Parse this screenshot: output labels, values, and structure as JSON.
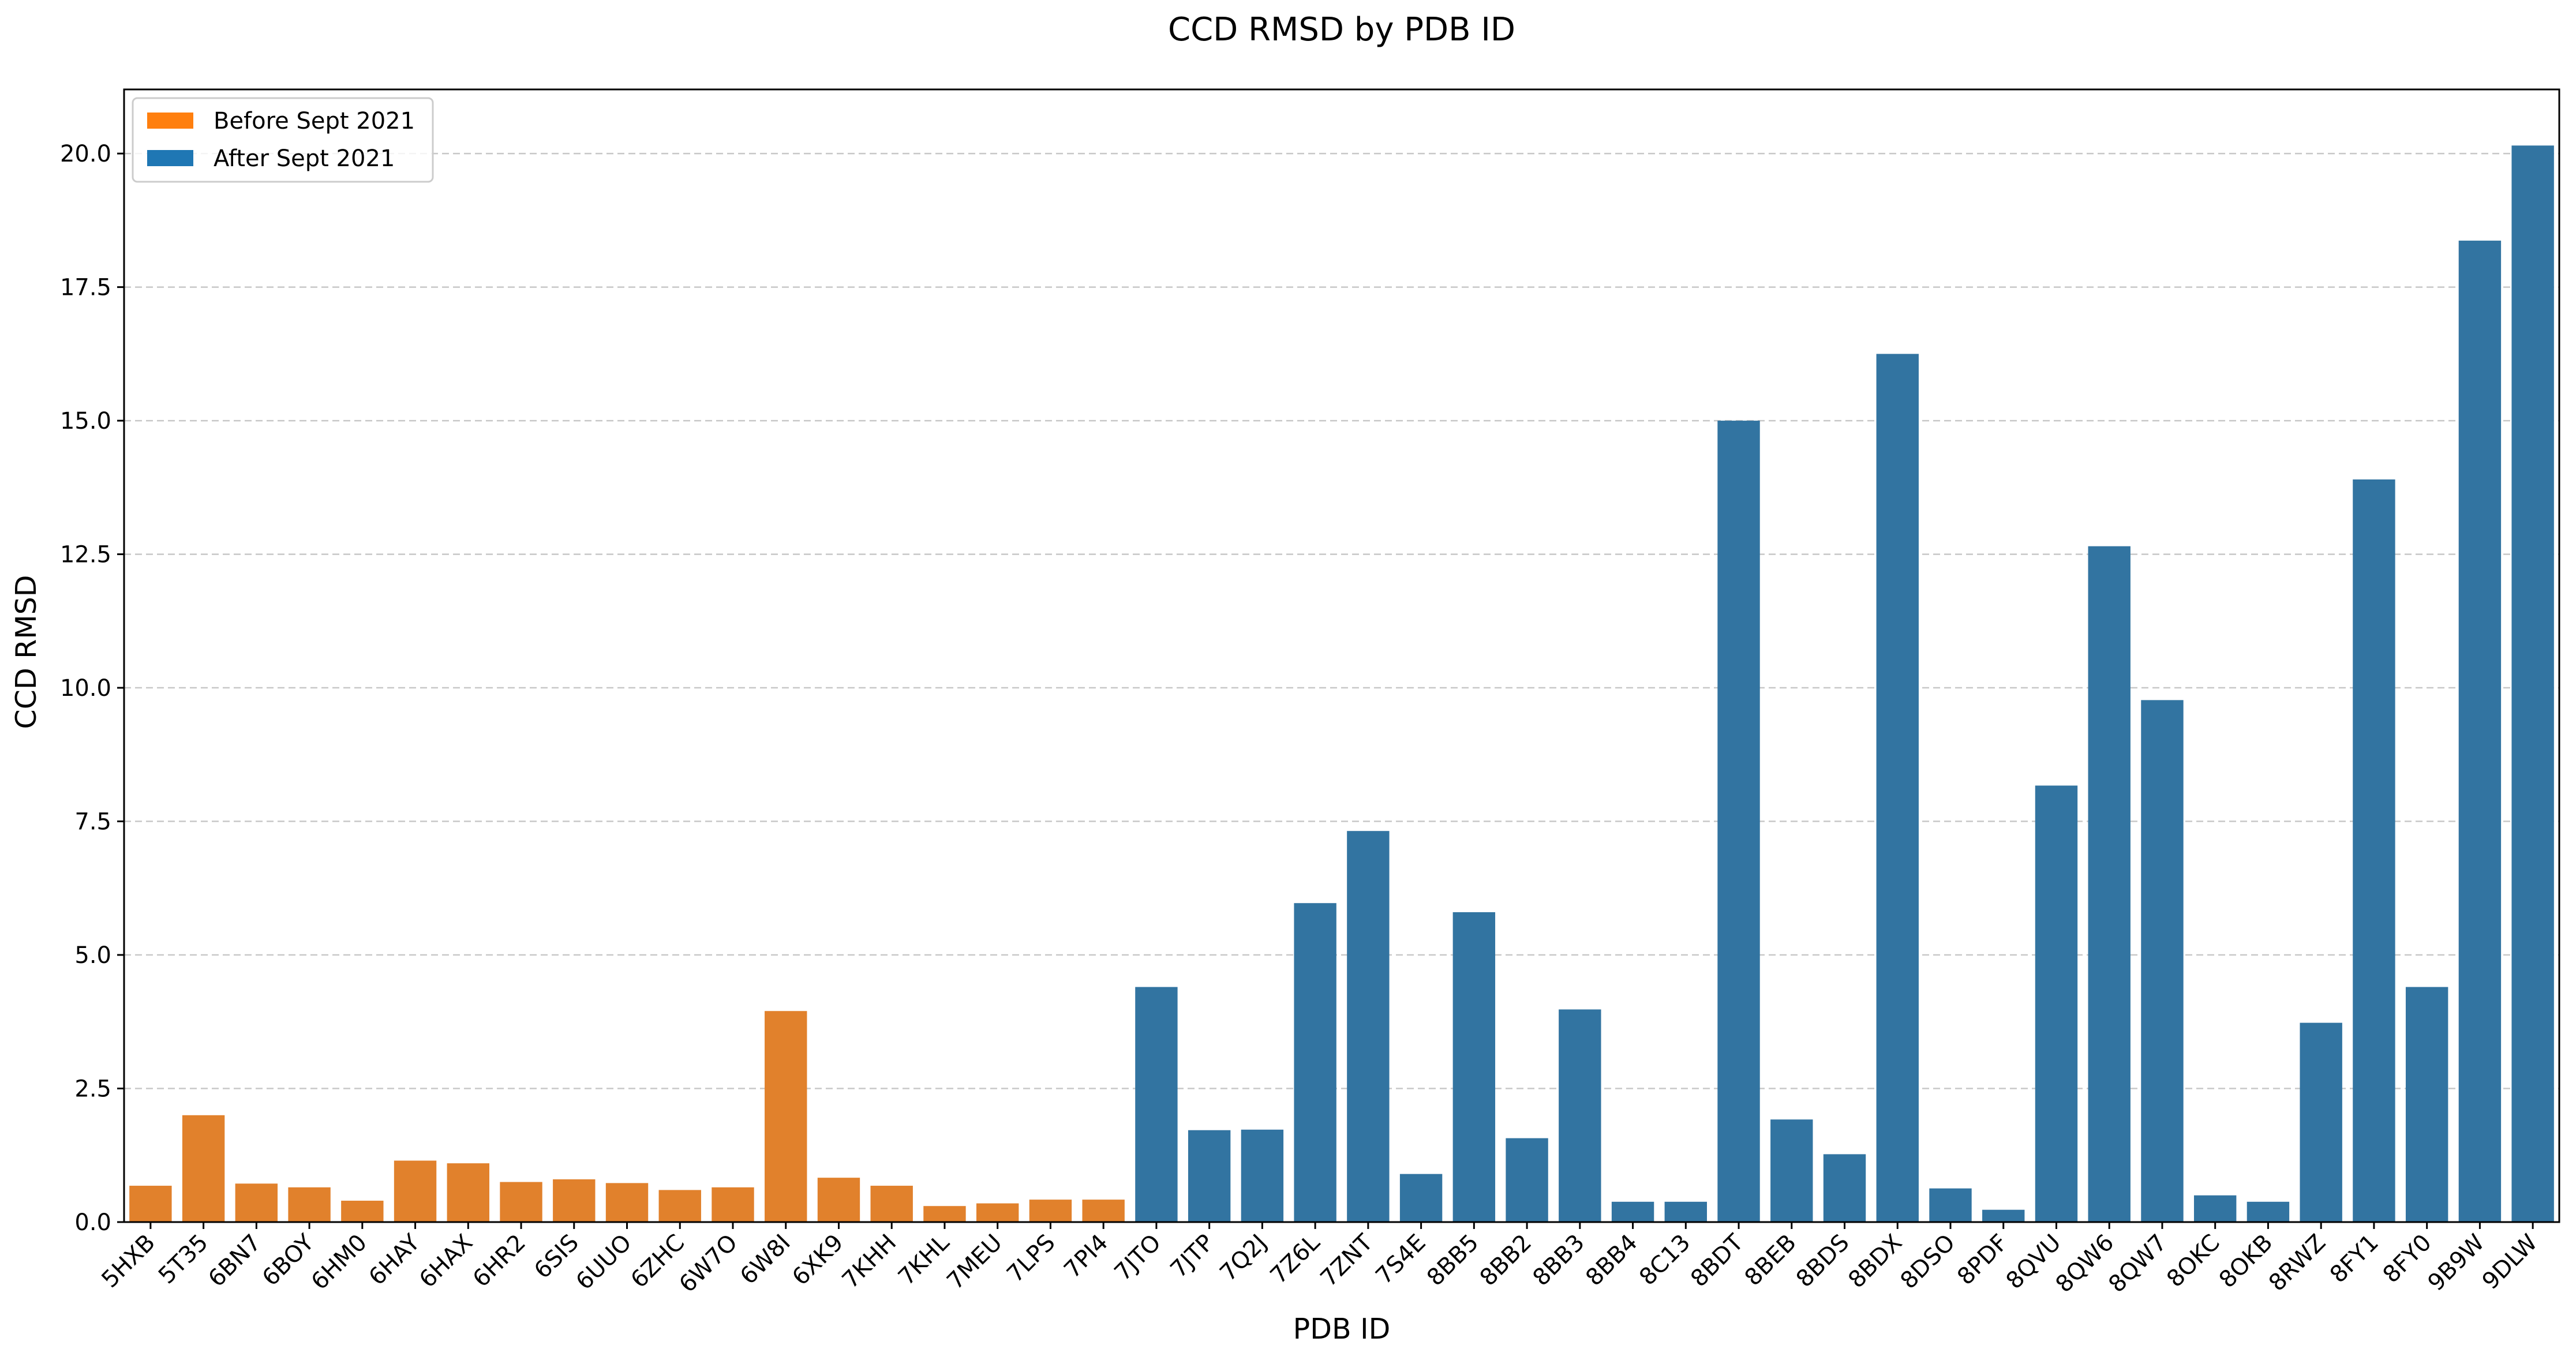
{
  "chart_data": {
    "type": "bar",
    "title": "CCD RMSD by PDB ID",
    "xlabel": "PDB ID",
    "ylabel": "CCD RMSD",
    "ylim": [
      0,
      21.2
    ],
    "yticks": [
      "0.0",
      "2.5",
      "5.0",
      "7.5",
      "10.0",
      "12.5",
      "15.0",
      "17.5",
      "20.0"
    ],
    "ytick_values": [
      0,
      2.5,
      5,
      7.5,
      10,
      12.5,
      15,
      17.5,
      20
    ],
    "grid": "horizontal dashed",
    "legend_position": "top-left",
    "series": [
      {
        "name": "Before Sept 2021",
        "color": "#ff7f0e",
        "bar_color": "#e1812c"
      },
      {
        "name": "After Sept 2021",
        "color": "#1f77b4",
        "bar_color": "#3274a1"
      }
    ],
    "categories": [
      "5HXB",
      "5T35",
      "6BN7",
      "6BOY",
      "6HM0",
      "6HAY",
      "6HAX",
      "6HR2",
      "6SIS",
      "6UUO",
      "6ZHC",
      "6W7O",
      "6W8I",
      "6XK9",
      "7KHH",
      "7KHL",
      "7MEU",
      "7LPS",
      "7PI4",
      "7JTO",
      "7JTP",
      "7Q2J",
      "7Z6L",
      "7ZNT",
      "7S4E",
      "8BB5",
      "8BB2",
      "8BB3",
      "8BB4",
      "8C13",
      "8BDT",
      "8BEB",
      "8BDS",
      "8BDX",
      "8DSO",
      "8PDF",
      "8QVU",
      "8QW6",
      "8QW7",
      "8OKC",
      "8OKB",
      "8RWZ",
      "8FY1",
      "8FY0",
      "9B9W",
      "9DLW"
    ],
    "values": [
      0.68,
      2.0,
      0.72,
      0.65,
      0.4,
      1.15,
      1.1,
      0.75,
      0.8,
      0.73,
      0.6,
      0.65,
      3.95,
      0.83,
      0.68,
      0.3,
      0.35,
      0.42,
      0.42,
      4.4,
      1.72,
      1.73,
      5.97,
      7.32,
      0.9,
      5.8,
      1.57,
      3.98,
      0.38,
      0.38,
      15.0,
      1.92,
      1.27,
      16.25,
      0.63,
      0.23,
      8.17,
      12.65,
      9.77,
      0.5,
      0.38,
      3.73,
      13.9,
      4.4,
      18.37,
      20.15
    ],
    "groups": [
      0,
      0,
      0,
      0,
      0,
      0,
      0,
      0,
      0,
      0,
      0,
      0,
      0,
      0,
      0,
      0,
      0,
      0,
      0,
      1,
      1,
      1,
      1,
      1,
      1,
      1,
      1,
      1,
      1,
      1,
      1,
      1,
      1,
      1,
      1,
      1,
      1,
      1,
      1,
      1,
      1,
      1,
      1,
      1,
      1,
      1
    ]
  }
}
